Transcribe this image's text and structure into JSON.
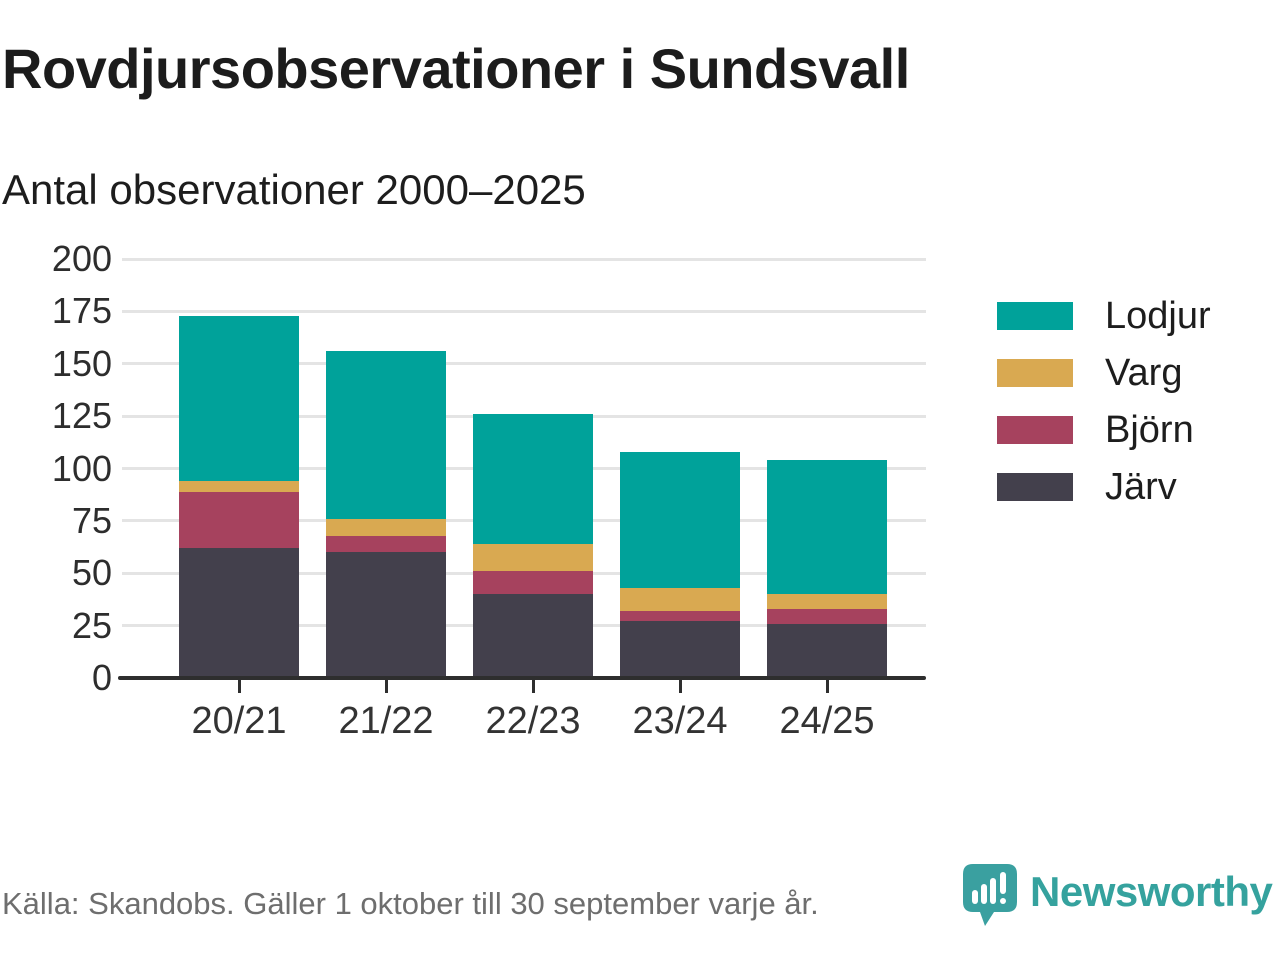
{
  "header": {
    "title": "Rovdjursobservationer i Sundsvall",
    "subtitle": "Antal observationer 2000–2025"
  },
  "chart_data": {
    "type": "bar",
    "stacked": true,
    "title": "Rovdjursobservationer i Sundsvall",
    "subtitle": "Antal observationer 2000–2025",
    "categories": [
      "20/21",
      "21/22",
      "22/23",
      "23/24",
      "24/25"
    ],
    "series": [
      {
        "name": "Järv",
        "color": "#43404C",
        "values": [
          62,
          60,
          40,
          27,
          26
        ]
      },
      {
        "name": "Björn",
        "color": "#A6425E",
        "values": [
          27,
          8,
          11,
          5,
          7
        ]
      },
      {
        "name": "Varg",
        "color": "#D9A951",
        "values": [
          5,
          8,
          13,
          11,
          7
        ]
      },
      {
        "name": "Lodjur",
        "color": "#00A29A",
        "values": [
          79,
          80,
          62,
          65,
          64
        ]
      }
    ],
    "stack_totals": [
      173,
      156,
      126,
      108,
      104
    ],
    "ylim": [
      0,
      200
    ],
    "yticks": [
      0,
      25,
      50,
      75,
      100,
      125,
      150,
      175,
      200
    ],
    "xlabel": "",
    "ylabel": "",
    "grid": "horizontal",
    "legend_position": "right",
    "legend_order": [
      "Lodjur",
      "Varg",
      "Björn",
      "Järv"
    ]
  },
  "footer": {
    "source": "Källa: Skandobs. Gäller 1 oktober till 30 september varje år.",
    "brand": "Newsworthy"
  },
  "colors": {
    "lodjur": "#00A29A",
    "varg": "#D9A951",
    "bjorn": "#A6425E",
    "jarv": "#43404C",
    "brand_teal": "#3AA0A0",
    "brand_text": "#35A29E",
    "gridline": "#E4E4E4",
    "axis": "#2E2E2E",
    "source_text": "#6E6E6E"
  }
}
